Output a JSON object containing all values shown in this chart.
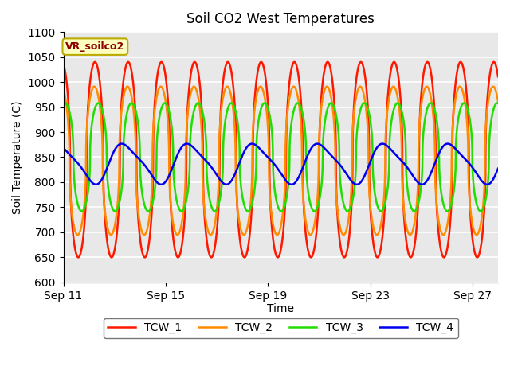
{
  "title": "Soil CO2 West Temperatures",
  "xlabel": "Time",
  "ylabel": "Soil Temperature (C)",
  "annotation": "VR_soilco2",
  "ylim": [
    600,
    1100
  ],
  "xlim_days": [
    0,
    17
  ],
  "x_ticks_days": [
    0,
    4,
    8,
    12,
    16
  ],
  "x_tick_labels": [
    "Sep 11",
    "Sep 15",
    "Sep 19",
    "Sep 23",
    "Sep 27"
  ],
  "colors": {
    "TCW_1": "#ff1800",
    "TCW_2": "#ff8c00",
    "TCW_3": "#22dd00",
    "TCW_4": "#0000ee"
  },
  "bg_color": "#e8e8e8",
  "period_tcw12": 1.3,
  "period_tcw3": 1.3,
  "period_tcw4": 2.55,
  "tcw1_mean": 845,
  "tcw1_amp": 195,
  "tcw2_mean": 843,
  "tcw2_amp": 148,
  "tcw3_mean": 850,
  "tcw3_amp": 108,
  "tcw4_mean": 838,
  "tcw4_amp": 38,
  "linewidth": 1.8
}
